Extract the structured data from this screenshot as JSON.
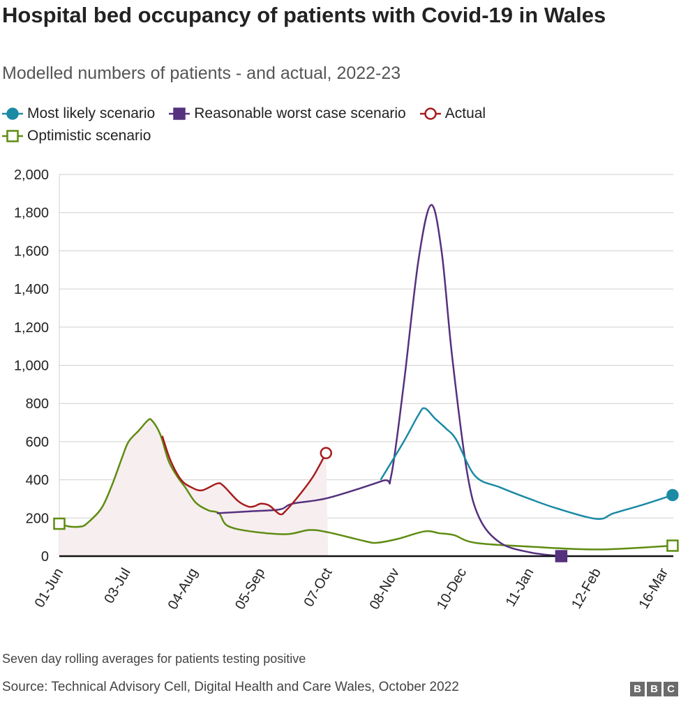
{
  "chart_data": {
    "type": "line",
    "title": "Hospital bed occupancy of patients with Covid-19 in Wales",
    "subtitle": "Modelled numbers of patients - and actual, 2022-23",
    "ylim": [
      0,
      2000
    ],
    "yticks": [
      "0",
      "200",
      "400",
      "600",
      "800",
      "1,000",
      "1,200",
      "1,400",
      "1,600",
      "1,800",
      "2,000"
    ],
    "ytick_values": [
      0,
      200,
      400,
      600,
      800,
      1000,
      1200,
      1400,
      1600,
      1800,
      2000
    ],
    "xlim": [
      "2022-06-01",
      "2023-03-20"
    ],
    "xticks": [
      {
        "label": "01-Jun",
        "date": "2022-06-01"
      },
      {
        "label": "03-Jul",
        "date": "2022-07-03"
      },
      {
        "label": "04-Aug",
        "date": "2022-08-04"
      },
      {
        "label": "05-Sep",
        "date": "2022-09-05"
      },
      {
        "label": "07-Oct",
        "date": "2022-10-07"
      },
      {
        "label": "08-Nov",
        "date": "2022-11-08"
      },
      {
        "label": "10-Dec",
        "date": "2022-12-10"
      },
      {
        "label": "11-Jan",
        "date": "2023-01-11"
      },
      {
        "label": "12-Feb",
        "date": "2023-02-12"
      },
      {
        "label": "16-Mar",
        "date": "2023-03-16"
      }
    ],
    "grid": true,
    "legend_placement": "top",
    "shaded_period": [
      "2022-06-01",
      "2022-10-07"
    ],
    "series": [
      {
        "name": "Most likely scenario",
        "color": "#1b8aa4",
        "marker": "filled-circle",
        "points": [
          [
            "2022-11-01",
            400
          ],
          [
            "2022-11-12",
            600
          ],
          [
            "2022-11-19",
            740
          ],
          [
            "2022-11-22",
            775
          ],
          [
            "2022-11-27",
            720
          ],
          [
            "2022-12-02",
            670
          ],
          [
            "2022-12-07",
            610
          ],
          [
            "2022-12-16",
            420
          ],
          [
            "2022-12-28",
            360
          ],
          [
            "2023-01-11",
            300
          ],
          [
            "2023-01-24",
            250
          ],
          [
            "2023-02-12",
            195
          ],
          [
            "2023-02-20",
            225
          ],
          [
            "2023-03-06",
            270
          ],
          [
            "2023-03-20",
            320
          ]
        ]
      },
      {
        "name": "Reasonable worst case scenario",
        "color": "#55317e",
        "marker": "filled-square",
        "points": [
          [
            "2022-08-15",
            225
          ],
          [
            "2022-08-31",
            235
          ],
          [
            "2022-09-14",
            245
          ],
          [
            "2022-09-20",
            275
          ],
          [
            "2022-10-07",
            305
          ],
          [
            "2022-11-02",
            395
          ],
          [
            "2022-11-06",
            420
          ],
          [
            "2022-11-12",
            900
          ],
          [
            "2022-11-19",
            1550
          ],
          [
            "2022-11-25",
            1840
          ],
          [
            "2022-11-30",
            1600
          ],
          [
            "2022-12-05",
            1050
          ],
          [
            "2022-12-12",
            450
          ],
          [
            "2022-12-18",
            200
          ],
          [
            "2022-12-28",
            70
          ],
          [
            "2023-01-11",
            20
          ],
          [
            "2023-01-26",
            0
          ]
        ]
      },
      {
        "name": "Actual",
        "color": "#a51c1c",
        "marker": "open-circle",
        "points": [
          [
            "2022-07-20",
            630
          ],
          [
            "2022-07-24",
            500
          ],
          [
            "2022-07-29",
            400
          ],
          [
            "2022-08-03",
            360
          ],
          [
            "2022-08-08",
            345
          ],
          [
            "2022-08-15",
            380
          ],
          [
            "2022-08-18",
            370
          ],
          [
            "2022-08-25",
            290
          ],
          [
            "2022-08-30",
            260
          ],
          [
            "2022-09-02",
            262
          ],
          [
            "2022-09-05",
            275
          ],
          [
            "2022-09-09",
            265
          ],
          [
            "2022-09-14",
            220
          ],
          [
            "2022-09-17",
            240
          ],
          [
            "2022-09-24",
            330
          ],
          [
            "2022-09-30",
            420
          ],
          [
            "2022-10-06",
            540
          ]
        ]
      },
      {
        "name": "Optimistic scenario",
        "color": "#5e8c12",
        "marker": "open-square",
        "points": [
          [
            "2022-06-01",
            170
          ],
          [
            "2022-06-06",
            155
          ],
          [
            "2022-06-11",
            155
          ],
          [
            "2022-06-14",
            170
          ],
          [
            "2022-06-21",
            250
          ],
          [
            "2022-06-26",
            370
          ],
          [
            "2022-07-01",
            520
          ],
          [
            "2022-07-04",
            600
          ],
          [
            "2022-07-09",
            660
          ],
          [
            "2022-07-13",
            710
          ],
          [
            "2022-07-15",
            712
          ],
          [
            "2022-07-19",
            640
          ],
          [
            "2022-07-23",
            500
          ],
          [
            "2022-07-27",
            420
          ],
          [
            "2022-07-31",
            360
          ],
          [
            "2022-08-05",
            280
          ],
          [
            "2022-08-11",
            240
          ],
          [
            "2022-08-16",
            225
          ],
          [
            "2022-08-20",
            160
          ],
          [
            "2022-08-31",
            130
          ],
          [
            "2022-09-17",
            115
          ],
          [
            "2022-09-28",
            137
          ],
          [
            "2022-10-07",
            125
          ],
          [
            "2022-10-24",
            80
          ],
          [
            "2022-10-30",
            70
          ],
          [
            "2022-11-09",
            90
          ],
          [
            "2022-11-22",
            130
          ],
          [
            "2022-11-29",
            120
          ],
          [
            "2022-12-06",
            110
          ],
          [
            "2022-12-16",
            70
          ],
          [
            "2023-01-11",
            50
          ],
          [
            "2023-02-13",
            35
          ],
          [
            "2023-03-20",
            55
          ]
        ]
      }
    ]
  },
  "footer": {
    "note": "Seven day rolling averages for patients testing positive",
    "source": "Source: Technical Advisory Cell, Digital Health and Care Wales, October 2022",
    "logo": [
      "B",
      "B",
      "C"
    ]
  }
}
